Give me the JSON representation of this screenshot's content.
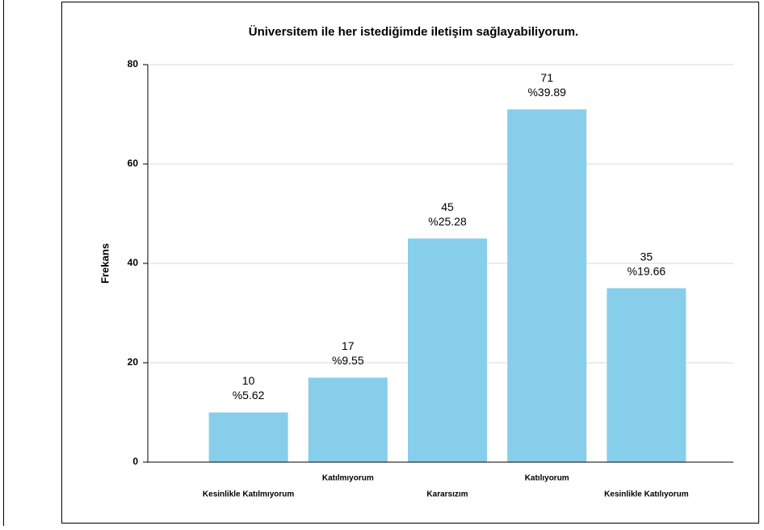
{
  "chart_data": {
    "type": "bar",
    "title": "Üniversitem ile her istediğimde iletişim sağlayabiliyorum.",
    "y_label": "Frekans",
    "categories": [
      "Kesinlikle Katılmıyorum",
      "Katılmıyorum",
      "Kararsızım",
      "Katılıyorum",
      "Kesinlikle Katılıyorum"
    ],
    "values": [
      10,
      17,
      45,
      71,
      35
    ],
    "percent_labels": [
      "%5.62",
      "%9.55",
      "%25.28",
      "%39.89",
      "%19.66"
    ],
    "color": "#87ceeb",
    "ylim": [
      0,
      80
    ],
    "yticks": [
      0,
      20,
      40,
      60,
      80
    ],
    "grid": true
  }
}
